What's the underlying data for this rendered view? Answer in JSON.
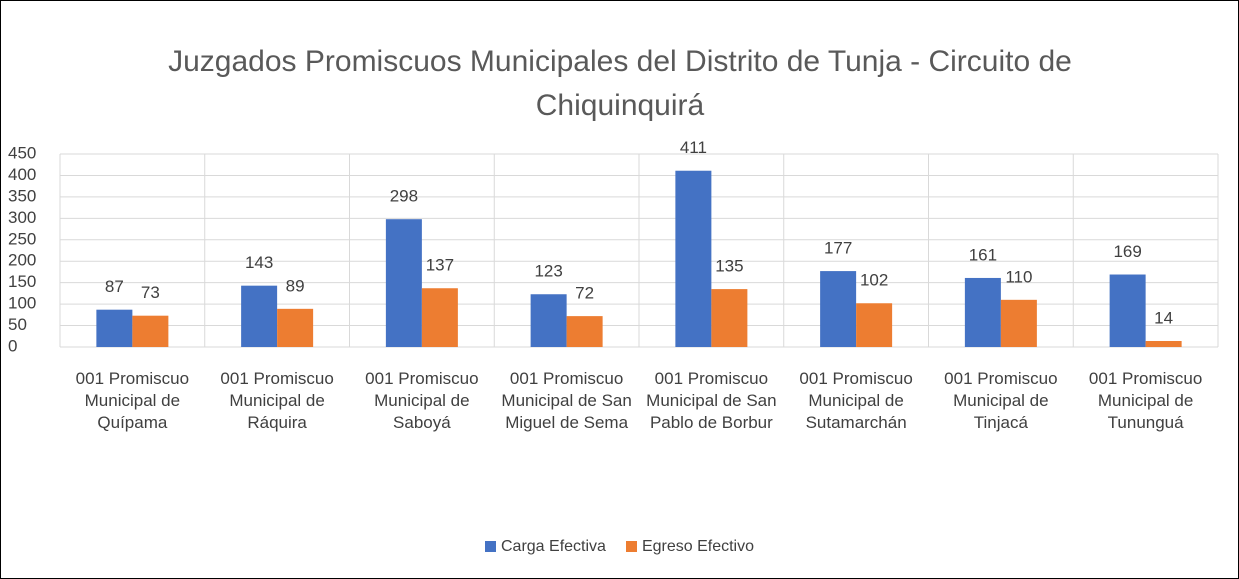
{
  "chart_data": {
    "type": "bar",
    "title": "Juzgados Promiscuos Municipales del Distrito de Tunja - Circuito de Chiquinquirá",
    "categories": [
      "001 Promiscuo Municipal de Quípama",
      "001 Promiscuo Municipal de Ráquira",
      "001 Promiscuo Municipal de Saboyá",
      "001 Promiscuo Municipal de San Miguel de Sema",
      "001 Promiscuo Municipal de San Pablo de Borbur",
      "001 Promiscuo Municipal de Sutamarchán",
      "001 Promiscuo Municipal de Tinjacá",
      "001 Promiscuo Municipal de Tununguá"
    ],
    "series": [
      {
        "name": "Carga Efectiva",
        "color": "#4472c4",
        "values": [
          87,
          143,
          298,
          123,
          411,
          177,
          161,
          169
        ]
      },
      {
        "name": "Egreso Efectivo",
        "color": "#ed7d31",
        "values": [
          73,
          89,
          137,
          72,
          135,
          102,
          110,
          14
        ]
      }
    ],
    "ylim": [
      0,
      450
    ],
    "yticks": [
      0,
      50,
      100,
      150,
      200,
      250,
      300,
      350,
      400,
      450
    ],
    "grid": true,
    "legend": "bottom"
  }
}
